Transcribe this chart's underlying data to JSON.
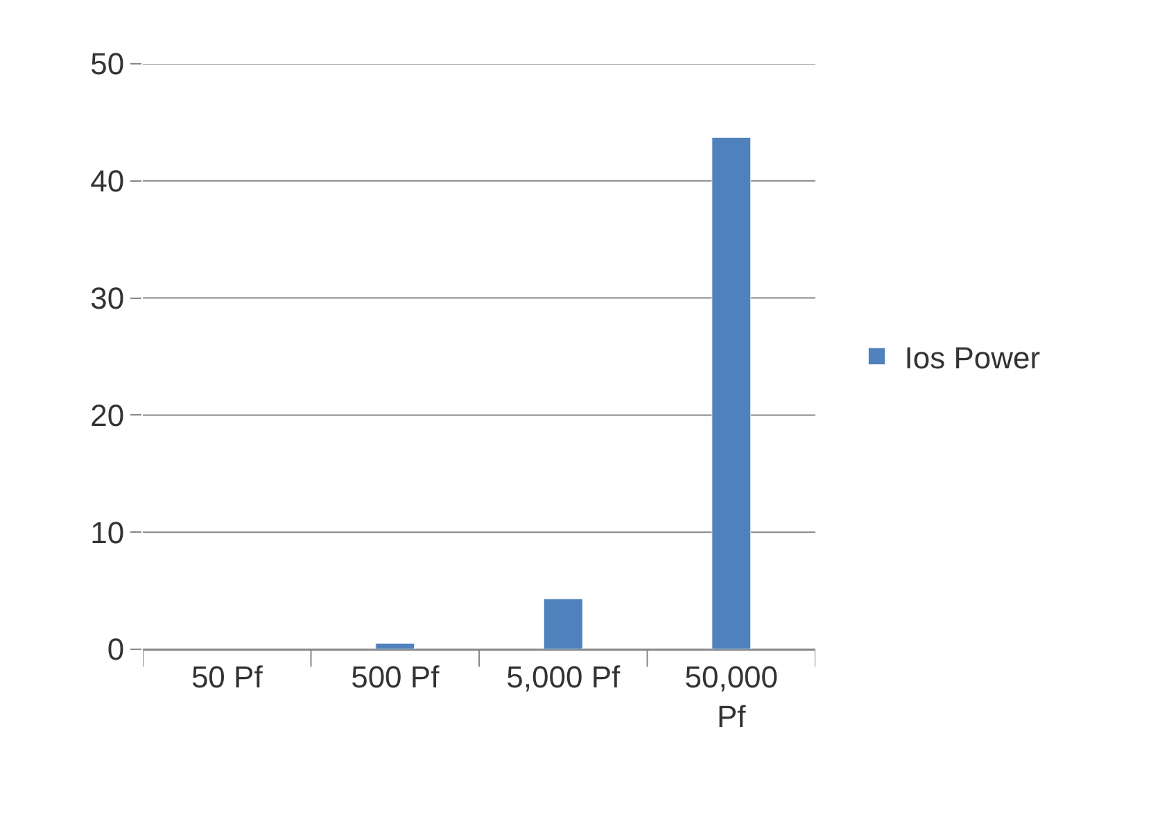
{
  "chart_data": {
    "type": "bar",
    "categories": [
      "50 Pf",
      "500 Pf",
      "5,000 Pf",
      "50,000 Pf"
    ],
    "series": [
      {
        "name": "Ios Power",
        "color": "#4f81bd",
        "values": [
          null,
          0.5,
          4.3,
          43.7
        ]
      }
    ],
    "ylim": [
      0,
      50
    ],
    "yticks": [
      0,
      10,
      20,
      30,
      40,
      50
    ],
    "grid": "y",
    "legend": "right"
  }
}
